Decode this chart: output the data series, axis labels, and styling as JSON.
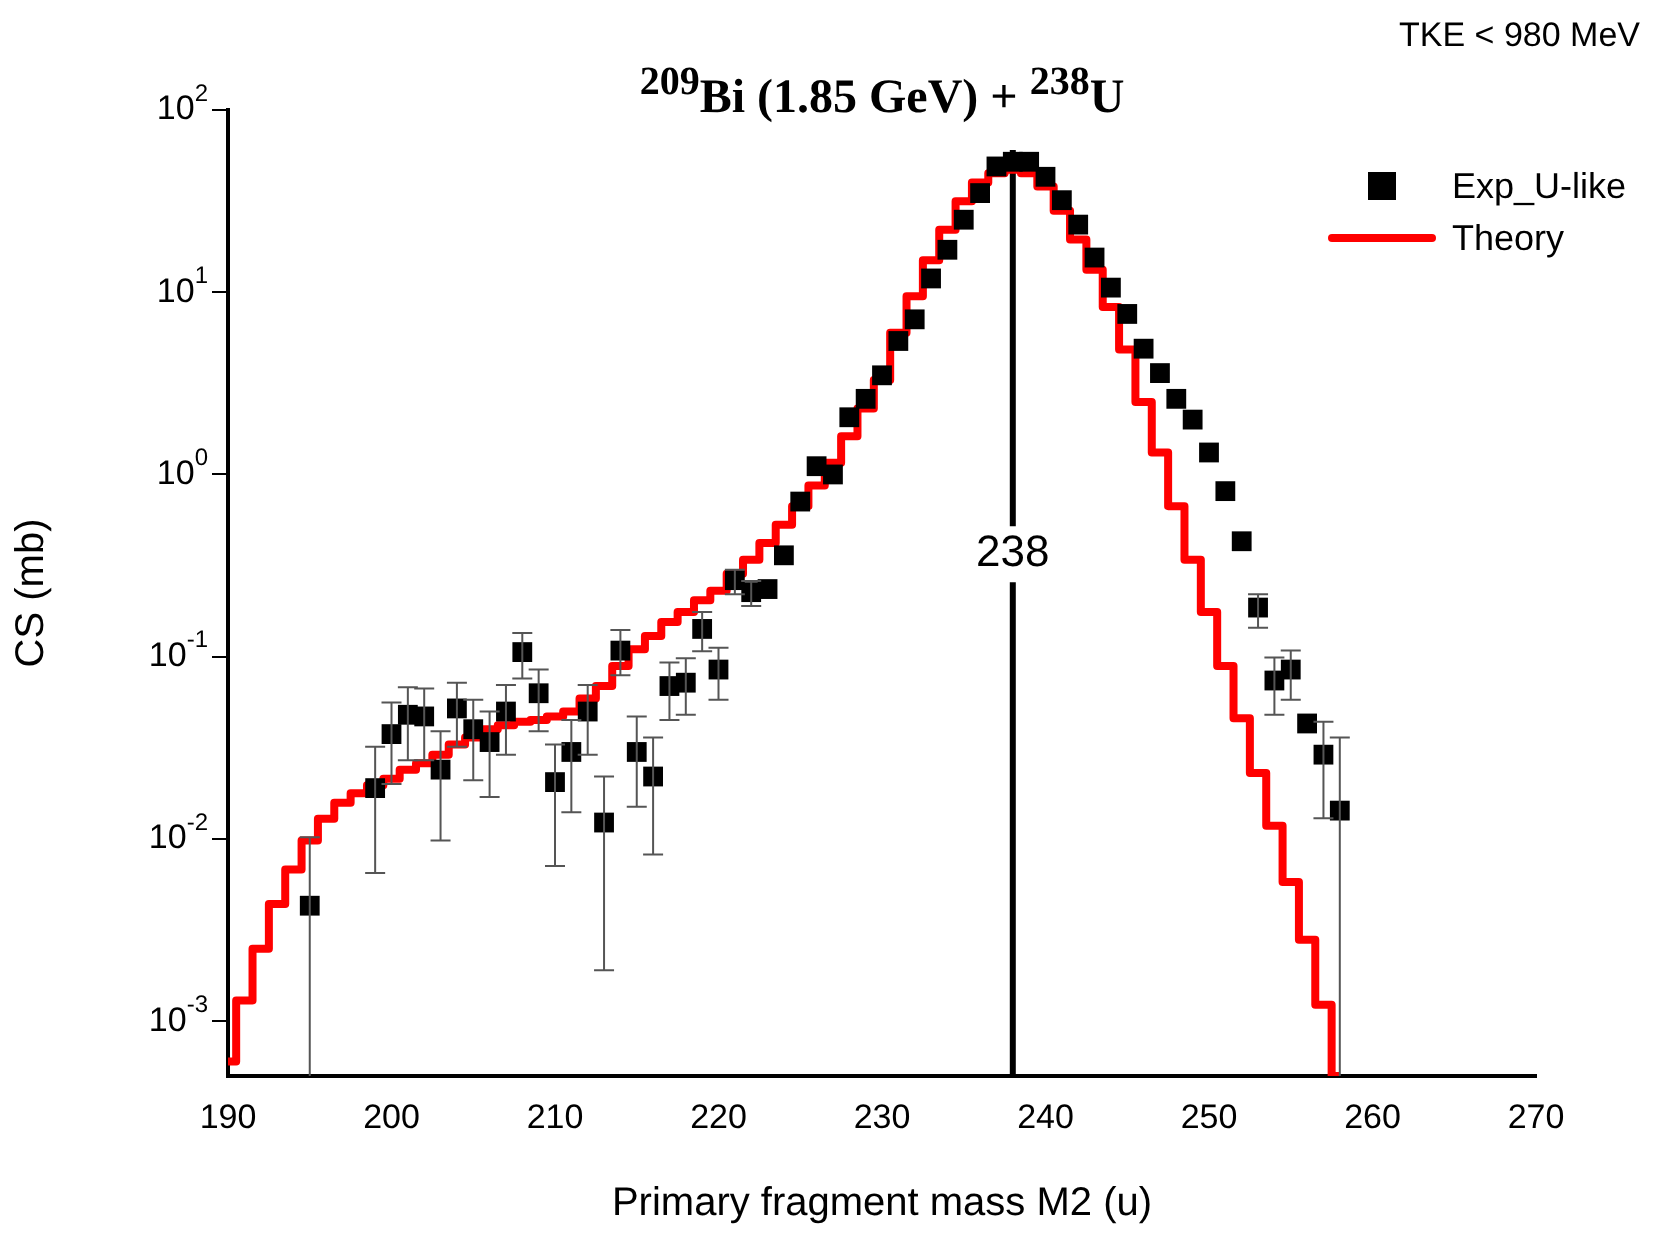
{
  "chart_data": {
    "type": "scatter",
    "title": "$^{209}$Bi (1.85 GeV) + $^{238}$U",
    "xlabel": "Primary fragment mass M2 (u)",
    "ylabel": "CS (mb)",
    "log": "y",
    "grid": false,
    "legend": "top right",
    "xlim": [
      190,
      270
    ],
    "xticks": [
      190,
      200,
      210,
      220,
      230,
      240,
      250,
      260,
      270
    ],
    "ylim": [
      0.0005,
      100
    ],
    "yticks": [
      {
        "value": 0.001,
        "label": "10$^{-3}$"
      },
      {
        "value": 0.01,
        "label": "10$^{-2}$"
      },
      {
        "value": 0.1,
        "label": "10$^{-1}$"
      },
      {
        "value": 1,
        "label": "10$^{0}$"
      },
      {
        "value": 10,
        "label": "10$^{1}$"
      },
      {
        "value": 100,
        "label": "10$^{2}$"
      }
    ],
    "annotations": [
      "TKE < 980 MeV"
    ],
    "ref_lines": [
      {
        "axis": "x",
        "value": 238,
        "label": "238",
        "color": "#000000"
      }
    ],
    "series": [
      {
        "name": "Exp_U-like",
        "type": "scatter",
        "marker": "square",
        "color": "#000000",
        "x": [
          195,
          199,
          200,
          201,
          202,
          203,
          204,
          205,
          206,
          207,
          208,
          209,
          210,
          211,
          212,
          213,
          214,
          215,
          216,
          217,
          218,
          219,
          220,
          221,
          222,
          223,
          224,
          225,
          226,
          227,
          228,
          229,
          230,
          231,
          232,
          233,
          234,
          235,
          236,
          237,
          238,
          239,
          240,
          241,
          242,
          243,
          244,
          245,
          246,
          247,
          248,
          249,
          250,
          251,
          252,
          253,
          254,
          255,
          256,
          257,
          258
        ],
        "values": [
          0.0043,
          0.019,
          0.0376,
          0.048,
          0.047,
          0.024,
          0.052,
          0.04,
          0.034,
          0.05,
          0.106,
          0.063,
          0.0205,
          0.03,
          0.05,
          0.0123,
          0.108,
          0.03,
          0.022,
          0.069,
          0.072,
          0.142,
          0.085,
          0.263,
          0.226,
          0.235,
          0.36,
          0.71,
          1.11,
          1.0,
          2.06,
          2.6,
          3.5,
          5.4,
          7.1,
          11.9,
          17.1,
          25,
          35,
          49,
          52,
          52,
          43,
          32,
          23.5,
          15.5,
          10.6,
          7.6,
          4.9,
          3.6,
          2.6,
          2.0,
          1.32,
          0.81,
          0.43,
          0.186,
          0.074,
          0.085,
          0.043,
          0.029,
          0.0143
        ],
        "errors": [
          [
            0.0005,
            0.0102
          ],
          [
            0.0065,
            0.032
          ],
          [
            0.02,
            0.056
          ],
          [
            0.027,
            0.068
          ],
          [
            0.027,
            0.067
          ],
          [
            0.0098,
            0.039
          ],
          [
            0.032,
            0.072
          ],
          [
            0.021,
            0.058
          ],
          [
            0.017,
            0.05
          ],
          [
            0.029,
            0.07
          ],
          [
            0.076,
            0.135
          ],
          [
            0.039,
            0.085
          ],
          [
            0.0071,
            0.033
          ],
          [
            0.014,
            0.045
          ],
          [
            0.029,
            0.07
          ],
          [
            0.0019,
            0.022
          ],
          [
            0.079,
            0.14
          ],
          [
            0.015,
            0.047
          ],
          [
            0.0082,
            0.036
          ],
          [
            0.045,
            0.093
          ],
          [
            0.048,
            0.098
          ],
          [
            0.107,
            0.176
          ],
          [
            0.058,
            0.112
          ],
          [
            0.22,
            0.3
          ],
          [
            0.19,
            0.26
          ],
          null,
          null,
          null,
          null,
          null,
          null,
          null,
          null,
          null,
          null,
          null,
          null,
          null,
          null,
          null,
          null,
          null,
          null,
          null,
          null,
          null,
          null,
          null,
          null,
          null,
          null,
          null,
          null,
          null,
          null,
          [
            0.144,
            0.22
          ],
          [
            0.048,
            0.099
          ],
          [
            0.058,
            0.108
          ],
          null,
          [
            0.013,
            0.044
          ],
          [
            0.0005,
            0.036
          ]
        ]
      },
      {
        "name": "Theory",
        "type": "step",
        "marker": "none",
        "line_style": "solid",
        "color": "#ff0000",
        "x": [
          190,
          191,
          192,
          193,
          194,
          195,
          196,
          197,
          198,
          199,
          200,
          201,
          202,
          203,
          204,
          205,
          206,
          207,
          208,
          209,
          210,
          211,
          212,
          213,
          214,
          215,
          216,
          217,
          218,
          219,
          220,
          221,
          222,
          223,
          224,
          225,
          226,
          227,
          228,
          229,
          230,
          231,
          232,
          233,
          234,
          235,
          236,
          237,
          238,
          239,
          240,
          241,
          242,
          243,
          244,
          245,
          246,
          247,
          248,
          249,
          250,
          251,
          252,
          253,
          254,
          255,
          256,
          257,
          258
        ],
        "values": [
          0.0006,
          0.0013,
          0.0025,
          0.0044,
          0.0068,
          0.0098,
          0.0129,
          0.0158,
          0.0178,
          0.0197,
          0.0214,
          0.024,
          0.026,
          0.029,
          0.033,
          0.036,
          0.04,
          0.042,
          0.044,
          0.045,
          0.047,
          0.05,
          0.059,
          0.069,
          0.089,
          0.11,
          0.13,
          0.155,
          0.176,
          0.204,
          0.23,
          0.285,
          0.34,
          0.42,
          0.53,
          0.67,
          0.87,
          1.16,
          1.62,
          2.3,
          3.3,
          6.0,
          9.5,
          15,
          22,
          31.6,
          40,
          45,
          47,
          45,
          38,
          28,
          19.5,
          13.3,
          8.3,
          4.85,
          2.5,
          1.32,
          0.67,
          0.34,
          0.176,
          0.089,
          0.046,
          0.023,
          0.0118,
          0.0058,
          0.0028,
          0.00123,
          0.0005
        ]
      }
    ]
  }
}
